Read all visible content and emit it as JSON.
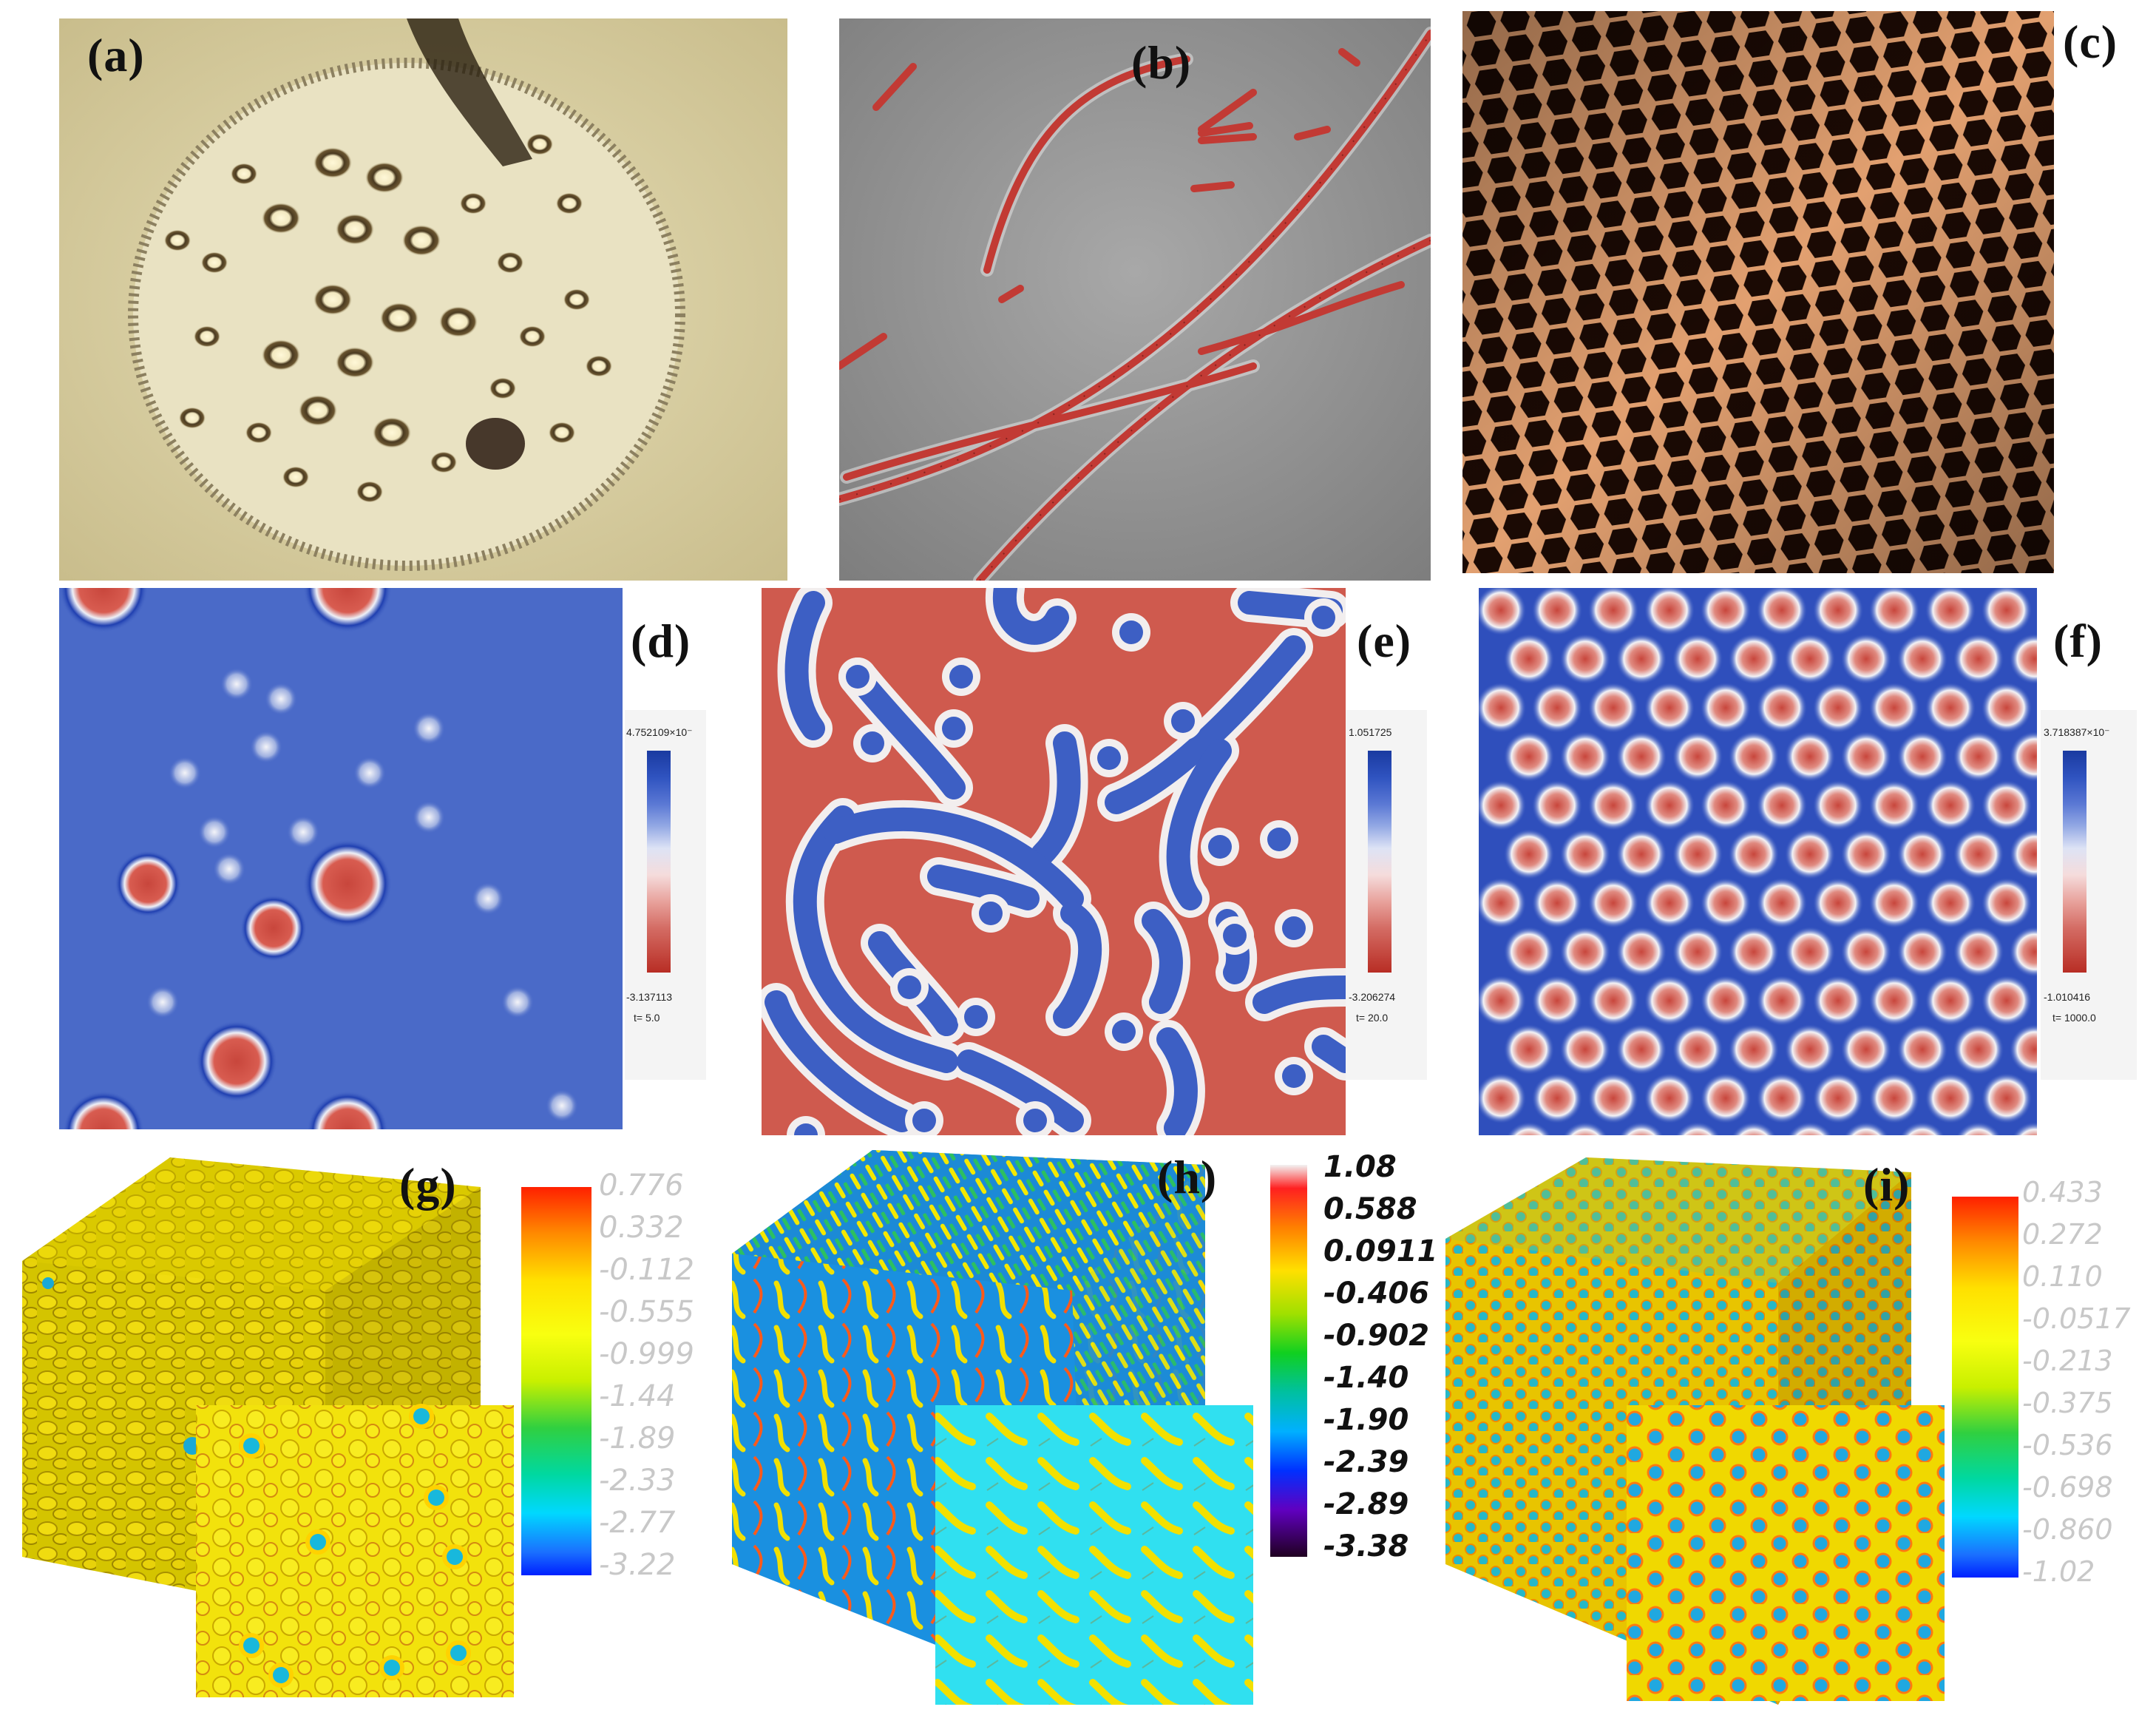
{
  "figure": {
    "labels": [
      "(a)",
      "(b)",
      "(c)",
      "(d)",
      "(e)",
      "(f)",
      "(g)",
      "(h)",
      "(i)"
    ]
  },
  "colorbars_2d": {
    "d": {
      "max": "4.752109×10⁻",
      "min": "-3.137113",
      "time": "t= 5.0"
    },
    "e": {
      "max": "1.051725",
      "min": "-3.206274",
      "time": "t= 20.0"
    },
    "f": {
      "max": "3.718387×10⁻",
      "min": "-1.010416",
      "time": "t= 1000.0"
    }
  },
  "colorbars_3d": {
    "g": [
      "0.776",
      "0.332",
      "-0.112",
      "-0.555",
      "-0.999",
      "-1.44",
      "-1.89",
      "-2.33",
      "-2.77",
      "-3.22"
    ],
    "h": [
      "1.08",
      "0.588",
      "0.0911",
      "-0.406",
      "-0.902",
      "-1.40",
      "-1.90",
      "-2.39",
      "-2.89",
      "-3.38"
    ],
    "i": [
      "0.433",
      "0.272",
      "0.110",
      "-0.0517",
      "-0.213",
      "-0.375",
      "-0.536",
      "-0.698",
      "-0.860",
      "-1.02"
    ]
  },
  "colors": {
    "sim_blue": "#3d5fc4",
    "sim_red": "#c8463c",
    "photo_beige": "#d8cfa8",
    "phase_gray": "#8f8f8f",
    "comb_brown": "#7a3a12"
  }
}
